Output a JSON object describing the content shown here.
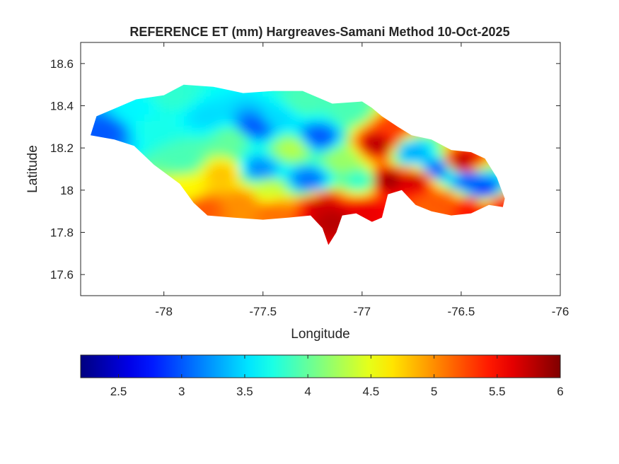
{
  "chart_data": {
    "type": "heatmap",
    "title": "REFERENCE ET (mm) Hargreaves-Samani Method  10-Oct-2025",
    "xlabel": "Longitude",
    "ylabel": "Latitude",
    "xlim": [
      -78.42,
      -76.0
    ],
    "ylim": [
      17.5,
      18.7
    ],
    "xticks": [
      -78,
      -77.5,
      -77,
      -76.5,
      -76
    ],
    "xtick_labels": [
      "-78",
      "-77.5",
      "-77",
      "-76.5",
      "-76"
    ],
    "yticks": [
      17.6,
      17.8,
      18.0,
      18.2,
      18.4,
      18.6
    ],
    "ytick_labels": [
      "17.6",
      "17.8",
      "18",
      "18.2",
      "18.4",
      "18.6"
    ],
    "colorbar": {
      "colormap": "jet",
      "orientation": "horizontal",
      "placement": "bottom",
      "range": [
        2.2,
        6.0
      ],
      "ticks": [
        2.5,
        3,
        3.5,
        4,
        4.5,
        5,
        5.5,
        6
      ],
      "tick_labels": [
        "2.5",
        "3",
        "3.5",
        "4",
        "4.5",
        "5",
        "5.5",
        "6"
      ]
    },
    "grid": false,
    "region_outline": [
      [
        -78.37,
        18.26
      ],
      [
        -78.34,
        18.35
      ],
      [
        -78.24,
        18.39
      ],
      [
        -78.14,
        18.43
      ],
      [
        -78.0,
        18.45
      ],
      [
        -77.9,
        18.5
      ],
      [
        -77.75,
        18.49
      ],
      [
        -77.6,
        18.46
      ],
      [
        -77.45,
        18.47
      ],
      [
        -77.3,
        18.47
      ],
      [
        -77.15,
        18.41
      ],
      [
        -77.0,
        18.42
      ],
      [
        -76.95,
        18.39
      ],
      [
        -76.9,
        18.35
      ],
      [
        -76.82,
        18.3
      ],
      [
        -76.75,
        18.26
      ],
      [
        -76.65,
        18.24
      ],
      [
        -76.55,
        18.19
      ],
      [
        -76.45,
        18.18
      ],
      [
        -76.38,
        18.15
      ],
      [
        -76.32,
        18.06
      ],
      [
        -76.28,
        17.96
      ],
      [
        -76.29,
        17.92
      ],
      [
        -76.36,
        17.93
      ],
      [
        -76.45,
        17.89
      ],
      [
        -76.55,
        17.88
      ],
      [
        -76.65,
        17.9
      ],
      [
        -76.73,
        17.93
      ],
      [
        -76.8,
        18.0
      ],
      [
        -76.87,
        17.98
      ],
      [
        -76.9,
        17.87
      ],
      [
        -76.95,
        17.85
      ],
      [
        -77.03,
        17.89
      ],
      [
        -77.1,
        17.88
      ],
      [
        -77.13,
        17.8
      ],
      [
        -77.17,
        17.74
      ],
      [
        -77.2,
        17.82
      ],
      [
        -77.26,
        17.88
      ],
      [
        -77.37,
        17.87
      ],
      [
        -77.5,
        17.86
      ],
      [
        -77.65,
        17.87
      ],
      [
        -77.78,
        17.88
      ],
      [
        -77.85,
        17.94
      ],
      [
        -77.92,
        18.03
      ],
      [
        -78.05,
        18.12
      ],
      [
        -78.15,
        18.21
      ],
      [
        -78.25,
        18.24
      ],
      [
        -78.37,
        18.26
      ]
    ],
    "et_field_samples": [
      {
        "lon": -78.3,
        "lat": 18.28,
        "et": 3.0
      },
      {
        "lon": -78.15,
        "lat": 18.38,
        "et": 3.6
      },
      {
        "lon": -78.05,
        "lat": 18.3,
        "et": 3.7
      },
      {
        "lon": -77.95,
        "lat": 18.45,
        "et": 3.8
      },
      {
        "lon": -77.9,
        "lat": 18.15,
        "et": 3.9
      },
      {
        "lon": -77.88,
        "lat": 18.0,
        "et": 4.6
      },
      {
        "lon": -77.8,
        "lat": 17.92,
        "et": 5.2
      },
      {
        "lon": -77.78,
        "lat": 18.35,
        "et": 3.5
      },
      {
        "lon": -77.7,
        "lat": 18.08,
        "et": 4.8
      },
      {
        "lon": -77.65,
        "lat": 18.25,
        "et": 4.0
      },
      {
        "lon": -77.6,
        "lat": 17.95,
        "et": 5.0
      },
      {
        "lon": -77.55,
        "lat": 18.3,
        "et": 3.0
      },
      {
        "lon": -77.52,
        "lat": 18.1,
        "et": 3.2
      },
      {
        "lon": -77.48,
        "lat": 18.0,
        "et": 4.4
      },
      {
        "lon": -77.45,
        "lat": 17.9,
        "et": 5.1
      },
      {
        "lon": -77.42,
        "lat": 18.35,
        "et": 3.5
      },
      {
        "lon": -77.35,
        "lat": 18.2,
        "et": 4.3
      },
      {
        "lon": -77.3,
        "lat": 18.42,
        "et": 3.9
      },
      {
        "lon": -77.27,
        "lat": 18.05,
        "et": 3.1
      },
      {
        "lon": -77.22,
        "lat": 18.25,
        "et": 3.0
      },
      {
        "lon": -77.2,
        "lat": 17.93,
        "et": 5.7
      },
      {
        "lon": -77.15,
        "lat": 17.86,
        "et": 5.8
      },
      {
        "lon": -77.1,
        "lat": 18.15,
        "et": 4.2
      },
      {
        "lon": -77.05,
        "lat": 18.38,
        "et": 3.9
      },
      {
        "lon": -77.0,
        "lat": 18.05,
        "et": 3.8
      },
      {
        "lon": -76.98,
        "lat": 17.9,
        "et": 5.6
      },
      {
        "lon": -76.92,
        "lat": 18.22,
        "et": 5.8
      },
      {
        "lon": -76.88,
        "lat": 18.05,
        "et": 5.9
      },
      {
        "lon": -76.85,
        "lat": 18.3,
        "et": 5.3
      },
      {
        "lon": -76.75,
        "lat": 18.18,
        "et": 3.3
      },
      {
        "lon": -76.72,
        "lat": 18.05,
        "et": 5.7
      },
      {
        "lon": -76.62,
        "lat": 18.1,
        "et": 3.0
      },
      {
        "lon": -76.6,
        "lat": 17.95,
        "et": 5.2
      },
      {
        "lon": -76.5,
        "lat": 18.13,
        "et": 5.8
      },
      {
        "lon": -76.47,
        "lat": 18.05,
        "et": 3.0
      },
      {
        "lon": -76.45,
        "lat": 17.92,
        "et": 5.5
      },
      {
        "lon": -76.38,
        "lat": 18.0,
        "et": 2.9
      },
      {
        "lon": -76.3,
        "lat": 17.94,
        "et": 5.4
      }
    ]
  }
}
